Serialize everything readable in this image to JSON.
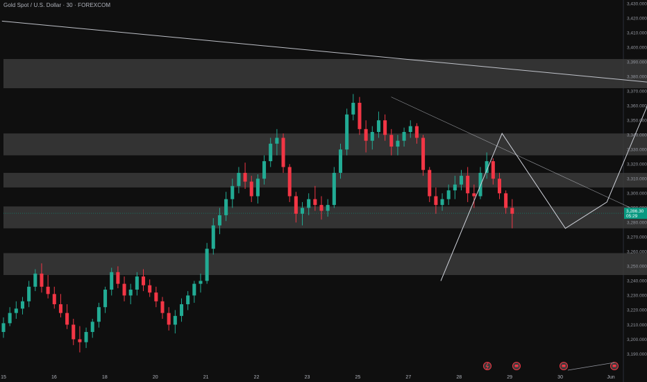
{
  "header": {
    "title": "Gold Spot / U.S. Dollar · 30 · FOREXCOM"
  },
  "price_label": {
    "value": "3,286.30",
    "countdown": "05:29"
  },
  "colors": {
    "up": "#22ab94",
    "down": "#f23645",
    "zone": "#3a3a3a",
    "line": "#d1d4dc",
    "price": "#089981",
    "axis_text": "#9598a1",
    "background": "#0f0f0f"
  },
  "events": [
    "lightning-icon",
    "flag-icon",
    "flag-icon",
    "flag-icon",
    "flag-icon"
  ],
  "chart_data": {
    "type": "candlestick",
    "title": "Gold Spot / U.S. Dollar · 30 · FOREXCOM",
    "y_ticks": [
      3190,
      3200,
      3210,
      3220,
      3230,
      3240,
      3250,
      3260,
      3270,
      3280,
      3290,
      3300,
      3310,
      3320,
      3330,
      3340,
      3350,
      3360,
      3370,
      3380,
      3390,
      3400,
      3410,
      3420,
      3430
    ],
    "ylim": [
      3185,
      3431
    ],
    "x_ticks": [
      "15",
      "16",
      "18",
      "20",
      "21",
      "22",
      "23",
      "25",
      "27",
      "28",
      "29",
      "30",
      "Jun"
    ],
    "current_price": 3286.3,
    "zones": [
      {
        "from_x": 0,
        "to_x": 25.05,
        "low": 3372,
        "high": 3392
      },
      {
        "from_x": 0,
        "to_x": 24.79,
        "low": 3326,
        "high": 3341
      },
      {
        "from_x": 0,
        "to_x": 24.39,
        "low": 3304,
        "high": 3314
      },
      {
        "from_x": 0,
        "to_x": 24.14,
        "low": 3276,
        "high": 3291
      },
      {
        "from_x": 0,
        "to_x": 25.97,
        "low": 3244,
        "high": 3259
      }
    ],
    "trendlines": [
      {
        "points": [
          [
            -0.03,
            3418
          ],
          [
            26.82,
            3330
          ]
        ]
      },
      {
        "points": [
          [
            7.66,
            3366
          ],
          [
            12.39,
            3290
          ]
        ]
      }
    ],
    "pattern_path": [
      [
        8.64,
        3240
      ],
      [
        9.85,
        3341
      ],
      [
        11.1,
        3276
      ],
      [
        11.92,
        3294
      ],
      [
        12.78,
        3365
      ],
      [
        13.94,
        3296
      ],
      [
        14.84,
        3276
      ],
      [
        15.51,
        3329
      ],
      [
        17.05,
        3254
      ]
    ],
    "candles": [
      [
        3205,
        3215,
        3201,
        3211
      ],
      [
        3211,
        3222,
        3209,
        3218
      ],
      [
        3218,
        3226,
        3214,
        3221
      ],
      [
        3221,
        3229,
        3217,
        3226
      ],
      [
        3226,
        3240,
        3222,
        3236
      ],
      [
        3236,
        3248,
        3233,
        3245
      ],
      [
        3245,
        3252,
        3232,
        3236
      ],
      [
        3236,
        3244,
        3228,
        3231
      ],
      [
        3231,
        3236,
        3221,
        3224
      ],
      [
        3224,
        3231,
        3215,
        3218
      ],
      [
        3218,
        3224,
        3207,
        3210
      ],
      [
        3210,
        3214,
        3196,
        3200
      ],
      [
        3200,
        3209,
        3191,
        3198
      ],
      [
        3198,
        3208,
        3194,
        3205
      ],
      [
        3205,
        3214,
        3201,
        3212
      ],
      [
        3212,
        3225,
        3208,
        3222
      ],
      [
        3222,
        3236,
        3218,
        3234
      ],
      [
        3234,
        3249,
        3230,
        3246
      ],
      [
        3246,
        3250,
        3235,
        3238
      ],
      [
        3238,
        3243,
        3226,
        3230
      ],
      [
        3230,
        3238,
        3224,
        3234
      ],
      [
        3234,
        3246,
        3230,
        3243
      ],
      [
        3243,
        3248,
        3233,
        3237
      ],
      [
        3237,
        3241,
        3229,
        3232
      ],
      [
        3232,
        3236,
        3222,
        3226
      ],
      [
        3226,
        3229,
        3214,
        3218
      ],
      [
        3218,
        3222,
        3206,
        3210
      ],
      [
        3210,
        3220,
        3204,
        3216
      ],
      [
        3216,
        3228,
        3212,
        3224
      ],
      [
        3224,
        3233,
        3220,
        3230
      ],
      [
        3230,
        3240,
        3225,
        3238
      ],
      [
        3238,
        3245,
        3232,
        3240
      ],
      [
        3240,
        3266,
        3238,
        3262
      ],
      [
        3262,
        3283,
        3258,
        3278
      ],
      [
        3278,
        3290,
        3272,
        3285
      ],
      [
        3285,
        3301,
        3281,
        3296
      ],
      [
        3296,
        3310,
        3290,
        3305
      ],
      [
        3305,
        3318,
        3300,
        3314
      ],
      [
        3314,
        3321,
        3303,
        3308
      ],
      [
        3308,
        3312,
        3294,
        3298
      ],
      [
        3298,
        3313,
        3293,
        3310
      ],
      [
        3310,
        3326,
        3306,
        3322
      ],
      [
        3322,
        3338,
        3318,
        3334
      ],
      [
        3334,
        3344,
        3326,
        3338
      ],
      [
        3338,
        3341,
        3314,
        3318
      ],
      [
        3318,
        3320,
        3294,
        3298
      ],
      [
        3298,
        3301,
        3280,
        3286
      ],
      [
        3286,
        3294,
        3278,
        3290
      ],
      [
        3290,
        3300,
        3285,
        3296
      ],
      [
        3296,
        3305,
        3288,
        3292
      ],
      [
        3292,
        3298,
        3282,
        3288
      ],
      [
        3288,
        3296,
        3284,
        3292
      ],
      [
        3292,
        3318,
        3290,
        3314
      ],
      [
        3314,
        3334,
        3310,
        3330
      ],
      [
        3330,
        3358,
        3326,
        3354
      ],
      [
        3354,
        3368,
        3350,
        3362
      ],
      [
        3362,
        3366,
        3340,
        3344
      ],
      [
        3344,
        3350,
        3328,
        3336
      ],
      [
        3336,
        3346,
        3330,
        3342
      ],
      [
        3342,
        3356,
        3338,
        3350
      ],
      [
        3350,
        3354,
        3336,
        3340
      ],
      [
        3340,
        3344,
        3326,
        3332
      ],
      [
        3332,
        3340,
        3326,
        3336
      ],
      [
        3336,
        3345,
        3332,
        3342
      ],
      [
        3342,
        3350,
        3338,
        3346
      ],
      [
        3346,
        3348,
        3334,
        3338
      ],
      [
        3338,
        3340,
        3312,
        3316
      ],
      [
        3316,
        3318,
        3294,
        3298
      ],
      [
        3298,
        3304,
        3286,
        3292
      ],
      [
        3292,
        3300,
        3288,
        3296
      ],
      [
        3296,
        3306,
        3292,
        3302
      ],
      [
        3302,
        3312,
        3296,
        3306
      ],
      [
        3306,
        3316,
        3302,
        3312
      ],
      [
        3312,
        3318,
        3294,
        3300
      ],
      [
        3300,
        3306,
        3290,
        3298
      ],
      [
        3298,
        3318,
        3296,
        3314
      ],
      [
        3314,
        3328,
        3310,
        3322
      ],
      [
        3322,
        3324,
        3306,
        3310
      ],
      [
        3310,
        3314,
        3296,
        3300
      ],
      [
        3300,
        3302,
        3286,
        3290
      ],
      [
        3290,
        3296,
        3276,
        3286
      ]
    ]
  }
}
